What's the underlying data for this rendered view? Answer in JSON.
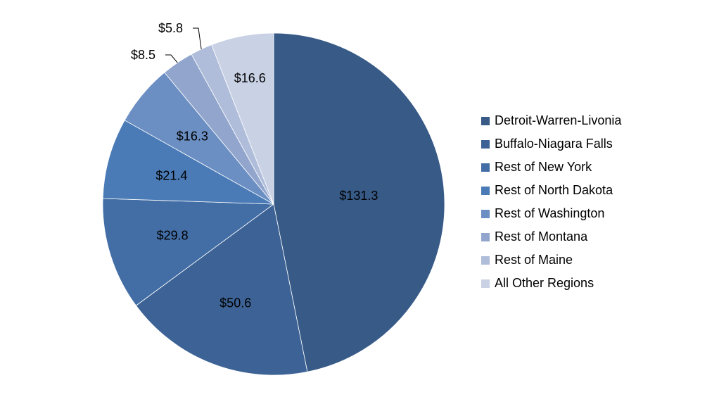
{
  "chart_data": {
    "type": "pie",
    "start": "top",
    "direction": "clockwise",
    "legend_position": "right",
    "slices": [
      {
        "label": "Detroit-Warren-Livonia",
        "value": 131.3,
        "data_label": "$131.3",
        "color": "#375A87"
      },
      {
        "label": "Buffalo-Niagara Falls",
        "value": 50.6,
        "data_label": "$50.6",
        "color": "#3D6396"
      },
      {
        "label": "Rest of New York",
        "value": 29.8,
        "data_label": "$29.8",
        "color": "#436EA5"
      },
      {
        "label": "Rest of North Dakota",
        "value": 21.4,
        "data_label": "$21.4",
        "color": "#4A7BB6"
      },
      {
        "label": "Rest of Washington",
        "value": 16.3,
        "data_label": "$16.3",
        "color": "#6B8FC3"
      },
      {
        "label": "Rest of Montana",
        "value": 8.5,
        "data_label": "$8.5",
        "color": "#91A5CD"
      },
      {
        "label": "Rest of Maine",
        "value": 5.8,
        "data_label": "$5.8",
        "color": "#AFBDDA"
      },
      {
        "label": "All Other Regions",
        "value": 16.6,
        "data_label": "$16.6",
        "color": "#C9D1E4"
      }
    ]
  }
}
